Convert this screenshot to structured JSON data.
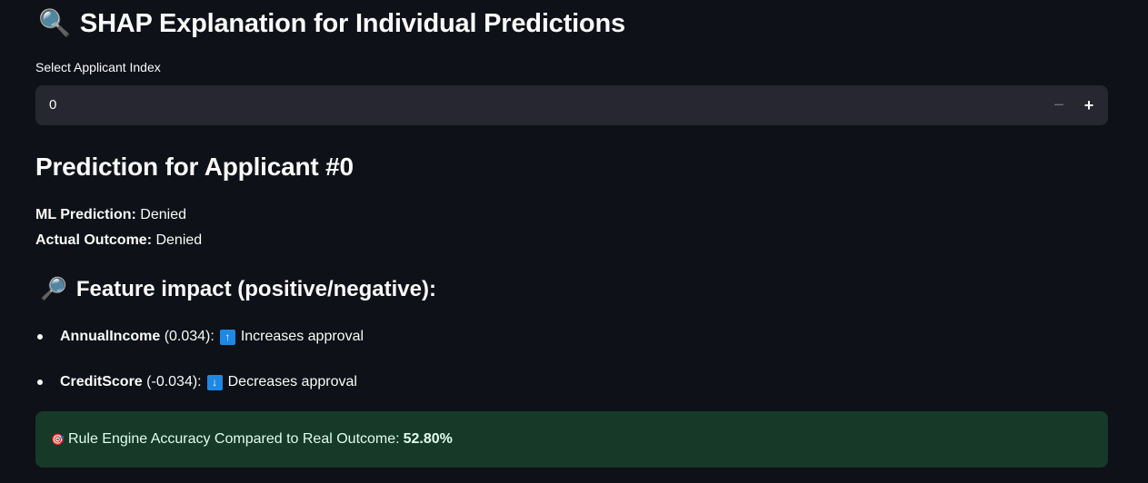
{
  "page": {
    "title_emoji": "🔍",
    "title": "SHAP Explanation for Individual Predictions"
  },
  "applicant_input": {
    "label": "Select Applicant Index",
    "value": "0",
    "minus_symbol": "−",
    "plus_symbol": "+"
  },
  "prediction": {
    "heading": "Prediction for Applicant #0",
    "ml_label": "ML Prediction:",
    "ml_value": "Denied",
    "actual_label": "Actual Outcome:",
    "actual_value": "Denied"
  },
  "feature_impact": {
    "emoji": "🔎",
    "heading": "Feature impact (positive/negative):",
    "items": [
      {
        "name": "AnnualIncome",
        "value": "(0.034):",
        "arrow": "↑",
        "effect": "Increases approval",
        "icon": "up-arrow-icon"
      },
      {
        "name": "CreditScore",
        "value": "(-0.034):",
        "arrow": "↓",
        "effect": "Decreases approval",
        "icon": "down-arrow-icon"
      }
    ]
  },
  "accuracy": {
    "emoji": "🎯",
    "text": "Rule Engine Accuracy Compared to Real Outcome:",
    "value": "52.80%"
  },
  "colors": {
    "background": "#0e1117",
    "input_bg": "#262730",
    "success_bg": "#173928",
    "arrow_box": "#1e88e5"
  }
}
